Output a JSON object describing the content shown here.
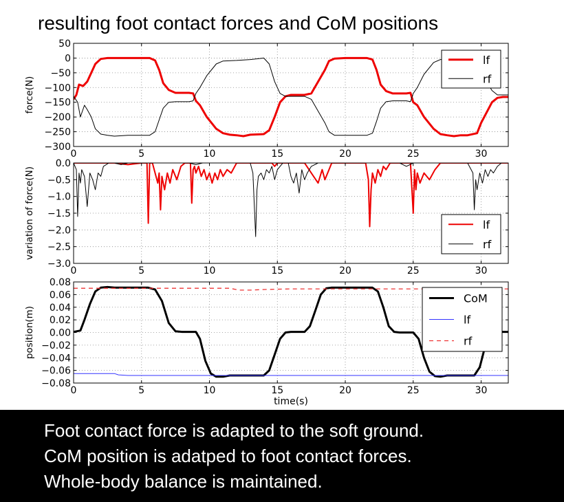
{
  "title": "resulting foot contact forces and CoM positions",
  "caption": [
    "Foot contact force is adapted to the soft ground.",
    "CoM position is adatped to foot contact forces.",
    "Whole-body balance is maintained."
  ],
  "colors": {
    "lf": "#ee0000",
    "rf": "#000000",
    "com": "#000000",
    "lf_pos": "#3333ff",
    "rf_pos": "#ee3333",
    "grid": "#888888"
  },
  "chart_data": [
    {
      "type": "line",
      "ylabel": "force(N)",
      "xlabel": "",
      "xlim": [
        0,
        32
      ],
      "ylim": [
        -300,
        50
      ],
      "xticks": [
        0,
        5,
        10,
        15,
        20,
        25,
        30
      ],
      "yticks": [
        50,
        0,
        -50,
        -100,
        -150,
        -200,
        -250,
        -300
      ],
      "ytick_labels": [
        "50",
        "0",
        "−50",
        "−100",
        "−150",
        "−200",
        "−250",
        "−300"
      ],
      "grid": true,
      "legend": "top-right",
      "series": [
        {
          "name": "lf",
          "color": "#ee0000",
          "width": 3,
          "x": [
            0,
            0.2,
            0.4,
            0.7,
            1.0,
            1.3,
            1.6,
            2.0,
            2.5,
            3,
            5,
            5.6,
            6.0,
            6.3,
            6.6,
            7.0,
            7.5,
            8.5,
            8.8,
            9.0,
            9.3,
            9.8,
            10.5,
            11,
            11.5,
            12,
            12.5,
            13,
            14,
            14.4,
            14.8,
            15.2,
            15.6,
            16,
            17,
            17.5,
            18,
            18.5,
            18.8,
            19.2,
            20,
            21,
            21.6,
            22.0,
            22.3,
            22.6,
            23.0,
            23.5,
            24.5,
            24.8,
            25.0,
            25.3,
            25.8,
            26.5,
            27,
            27.5,
            28,
            28.5,
            29,
            29.7,
            30.0,
            30.4,
            30.8,
            31.2,
            31.6,
            32
          ],
          "y": [
            -140,
            -125,
            -90,
            -95,
            -80,
            -50,
            -20,
            -3,
            0,
            0,
            0,
            0,
            -8,
            -40,
            -85,
            -108,
            -118,
            -118,
            -120,
            -145,
            -160,
            -200,
            -240,
            -255,
            -260,
            -262,
            -265,
            -260,
            -258,
            -245,
            -200,
            -150,
            -130,
            -125,
            -125,
            -120,
            -80,
            -40,
            -10,
            -2,
            0,
            0,
            0,
            -5,
            -40,
            -90,
            -112,
            -120,
            -120,
            -118,
            -150,
            -160,
            -200,
            -240,
            -258,
            -262,
            -265,
            -262,
            -262,
            -255,
            -220,
            -185,
            -150,
            -135,
            -132,
            -132
          ]
        },
        {
          "name": "rf",
          "color": "#000000",
          "width": 1,
          "x": [
            0,
            0.3,
            0.5,
            0.8,
            1.0,
            1.3,
            1.6,
            2.0,
            2.5,
            3,
            4,
            5,
            5.6,
            6.0,
            6.3,
            6.6,
            7.0,
            7.5,
            8.5,
            8.8,
            9.0,
            9.3,
            9.8,
            10.5,
            11,
            12,
            13,
            14,
            14.4,
            14.8,
            15.2,
            15.6,
            16,
            17,
            17.5,
            18,
            18.5,
            18.8,
            19.2,
            20,
            21,
            21.6,
            22.0,
            22.3,
            22.6,
            23.0,
            23.5,
            24.5,
            24.8,
            25.0,
            25.3,
            25.8,
            26.5,
            27,
            28,
            29,
            29.7,
            30.0,
            30.4,
            30.8,
            31.2,
            32
          ],
          "y": [
            -130,
            -150,
            -200,
            -160,
            -175,
            -200,
            -240,
            -258,
            -262,
            -265,
            -262,
            -262,
            -262,
            -250,
            -210,
            -170,
            -150,
            -148,
            -148,
            -145,
            -120,
            -100,
            -60,
            -20,
            -10,
            -8,
            -5,
            0,
            -20,
            -80,
            -120,
            -130,
            -130,
            -130,
            -140,
            -180,
            -220,
            -250,
            -262,
            -262,
            -262,
            -262,
            -255,
            -215,
            -170,
            -148,
            -145,
            -145,
            -148,
            -120,
            -100,
            -55,
            -15,
            -5,
            -3,
            -3,
            -8,
            -40,
            -80,
            -110,
            -125,
            -125
          ]
        }
      ]
    },
    {
      "type": "line",
      "ylabel": "variation of force(N)",
      "xlabel": "",
      "xlim": [
        0,
        32
      ],
      "ylim": [
        -3.0,
        0.0
      ],
      "xticks": [
        0,
        5,
        10,
        15,
        20,
        25,
        30
      ],
      "yticks": [
        0.0,
        -0.5,
        -1.0,
        -1.5,
        -2.0,
        -2.5,
        -3.0
      ],
      "ytick_labels": [
        "0.0",
        "−0.5",
        "−1.0",
        "−1.5",
        "−2.0",
        "−2.5",
        "−3.0"
      ],
      "grid": true,
      "legend": "bottom-right",
      "series": [
        {
          "name": "lf",
          "color": "#ee0000",
          "width": 2,
          "x": [
            0,
            3,
            4,
            5,
            5.4,
            5.5,
            5.6,
            5.8,
            6.2,
            6.3,
            6.4,
            6.5,
            6.7,
            6.9,
            7.1,
            7.3,
            7.6,
            7.9,
            8.2,
            8.6,
            8.7,
            8.8,
            8.9,
            9.0,
            9.2,
            9.4,
            9.6,
            9.8,
            10.0,
            10.2,
            10.4,
            10.6,
            10.8,
            11.0,
            11.3,
            11.6,
            12,
            13,
            14,
            14.6,
            14.8,
            15,
            16,
            17,
            17.5,
            18,
            18.3,
            18.5,
            19,
            20,
            21,
            21.5,
            21.7,
            21.8,
            21.9,
            22.0,
            22.2,
            22.4,
            22.6,
            22.8,
            23.0,
            23.3,
            23.6,
            24,
            24.5,
            24.8,
            25.0,
            25.1,
            25.2,
            25.3,
            25.5,
            25.8,
            26.2,
            26.6,
            27,
            28,
            29,
            30,
            30.5,
            31,
            32
          ],
          "y": [
            0,
            0,
            -0.05,
            0,
            0,
            -1.8,
            0,
            0,
            -0.6,
            -0.3,
            -1.4,
            -0.4,
            -0.8,
            -0.3,
            -0.6,
            -0.2,
            -0.5,
            -0.1,
            0,
            0,
            -1.2,
            -0.2,
            -0.1,
            -0.3,
            -0.1,
            -0.4,
            -0.2,
            -0.5,
            -0.3,
            -0.6,
            -0.3,
            -0.5,
            -0.2,
            -0.4,
            -0.2,
            -0.3,
            0,
            0,
            0,
            0,
            -0.1,
            0,
            0,
            0,
            -0.3,
            -0.6,
            -0.2,
            -0.5,
            0,
            0,
            0,
            0,
            -0.5,
            -1.9,
            -0.8,
            -0.3,
            -0.6,
            -0.2,
            -0.4,
            -0.1,
            -0.2,
            0,
            0,
            0,
            0,
            0,
            -1.5,
            -0.2,
            -0.8,
            -0.3,
            -0.6,
            -0.3,
            -0.5,
            -0.2,
            0,
            0,
            0,
            0,
            0,
            0,
            0
          ]
        },
        {
          "name": "rf",
          "color": "#000000",
          "width": 1,
          "x": [
            0,
            0.2,
            0.3,
            0.4,
            0.5,
            0.6,
            0.8,
            1.0,
            1.2,
            1.4,
            1.6,
            1.8,
            2.0,
            2.2,
            2.6,
            3,
            3.5,
            4,
            5,
            8.5,
            9,
            9.5,
            10,
            12.5,
            13.0,
            13.2,
            13.4,
            13.5,
            13.6,
            13.8,
            14.0,
            14.2,
            14.4,
            14.6,
            14.8,
            15.0,
            15.4,
            15.8,
            16.0,
            16.2,
            16.4,
            16.6,
            16.8,
            17.0,
            17.2,
            17.5,
            18,
            19,
            20,
            24,
            24.5,
            25,
            26,
            28,
            29,
            29.4,
            29.5,
            29.6,
            29.7,
            29.9,
            30.1,
            30.3,
            30.5,
            30.7,
            30.9,
            31.2,
            31.5,
            32
          ],
          "y": [
            0,
            -0.2,
            -1.6,
            -0.3,
            -0.6,
            -0.2,
            -0.4,
            -1.3,
            -0.3,
            -0.5,
            -0.8,
            -0.3,
            -0.4,
            -0.1,
            0,
            0,
            -0.05,
            0,
            0,
            0,
            -0.05,
            0,
            0,
            0,
            0,
            -0.3,
            -2.2,
            -0.8,
            -0.4,
            -0.3,
            -0.5,
            -0.2,
            -0.3,
            -0.1,
            -0.5,
            -0.2,
            0,
            0,
            -0.4,
            -0.6,
            -0.3,
            -0.9,
            -0.2,
            -0.5,
            -0.3,
            -0.1,
            0,
            0,
            0,
            0,
            -0.1,
            0,
            0,
            0,
            0,
            -0.3,
            -1.4,
            -0.5,
            -0.8,
            -0.3,
            -0.6,
            -0.2,
            -0.4,
            -0.2,
            -0.3,
            -0.1,
            0,
            0
          ]
        }
      ]
    },
    {
      "type": "line",
      "ylabel": "position(m)",
      "xlabel": "time(s)",
      "xlim": [
        0,
        32
      ],
      "ylim": [
        -0.08,
        0.08
      ],
      "xticks": [
        0,
        5,
        10,
        15,
        20,
        25,
        30
      ],
      "yticks": [
        0.08,
        0.06,
        0.04,
        0.02,
        0.0,
        -0.02,
        -0.04,
        -0.06,
        -0.08
      ],
      "ytick_labels": [
        "0.08",
        "0.06",
        "0.04",
        "0.02",
        "0.00",
        "−0.02",
        "−0.04",
        "−0.06",
        "−0.08"
      ],
      "grid": true,
      "legend": "top-right",
      "series": [
        {
          "name": "CoM",
          "color": "#000000",
          "width": 3,
          "x": [
            0,
            0.5,
            0.8,
            1.2,
            1.6,
            2.0,
            2.5,
            3,
            5.5,
            6.0,
            6.5,
            7.0,
            7.5,
            8,
            9,
            9.3,
            9.7,
            10.1,
            10.5,
            11,
            11.5,
            14,
            14.4,
            14.8,
            15.2,
            15.6,
            16,
            17,
            17.4,
            17.8,
            18.2,
            18.6,
            19,
            19.5,
            22,
            22.4,
            22.8,
            23.2,
            23.6,
            24,
            25,
            25.4,
            25.8,
            26.2,
            26.6,
            27,
            27.5,
            29.5,
            29.9,
            30.2,
            30.5,
            30.7,
            32
          ],
          "y": [
            0.001,
            0.003,
            0.02,
            0.045,
            0.065,
            0.071,
            0.072,
            0.071,
            0.071,
            0.068,
            0.05,
            0.015,
            0.002,
            0.001,
            0.001,
            -0.01,
            -0.045,
            -0.065,
            -0.07,
            -0.07,
            -0.068,
            -0.068,
            -0.06,
            -0.035,
            -0.01,
            0.0,
            0.001,
            0.001,
            0.01,
            0.035,
            0.06,
            0.07,
            0.071,
            0.071,
            0.071,
            0.065,
            0.04,
            0.01,
            0.001,
            0.0,
            0.0,
            -0.01,
            -0.04,
            -0.062,
            -0.069,
            -0.07,
            -0.068,
            -0.068,
            -0.055,
            -0.03,
            -0.005,
            0.001,
            0.001
          ]
        },
        {
          "name": "lf",
          "color": "#3333ff",
          "width": 1,
          "x": [
            0,
            3,
            3.3,
            4,
            32
          ],
          "y": [
            -0.065,
            -0.065,
            -0.067,
            -0.068,
            -0.068
          ]
        },
        {
          "name": "rf",
          "color": "#ee3333",
          "width": 1.3,
          "dash": true,
          "x": [
            0,
            11.5,
            12.2,
            13,
            14,
            16,
            32
          ],
          "y": [
            0.07,
            0.07,
            0.067,
            0.067,
            0.068,
            0.069,
            0.069
          ]
        }
      ]
    }
  ]
}
